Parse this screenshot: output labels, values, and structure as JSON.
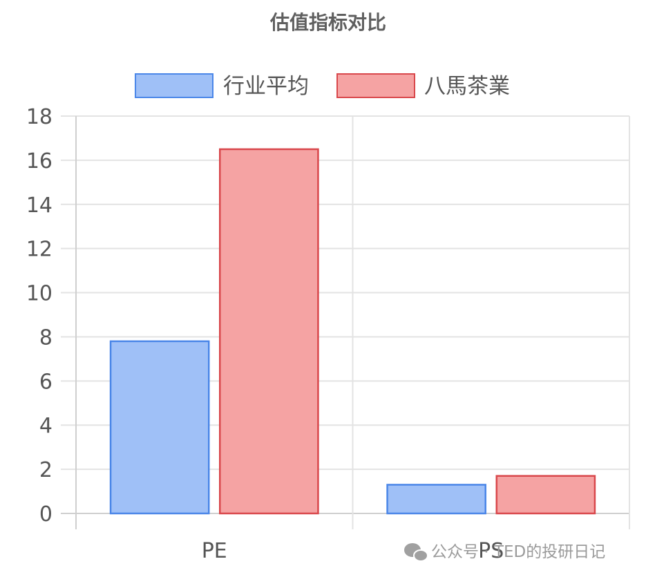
{
  "chart_data": {
    "type": "bar",
    "title": "估值指标对比",
    "categories": [
      "PE",
      "PS"
    ],
    "series": [
      {
        "name": "行业平均",
        "values": [
          7.8,
          1.3
        ],
        "fill": "#9fc0f7",
        "stroke": "#4a86e8"
      },
      {
        "name": "八馬茶業",
        "values": [
          16.5,
          1.7
        ],
        "fill": "#f5a3a3",
        "stroke": "#d9474b"
      }
    ],
    "ylim": [
      0,
      18
    ],
    "yticks": [
      0,
      2,
      4,
      6,
      8,
      10,
      12,
      14,
      16,
      18
    ],
    "grid": true,
    "legend": "top"
  },
  "watermark": {
    "icon": "wechat-icon",
    "text": "公众号 · TED的投研日记"
  }
}
